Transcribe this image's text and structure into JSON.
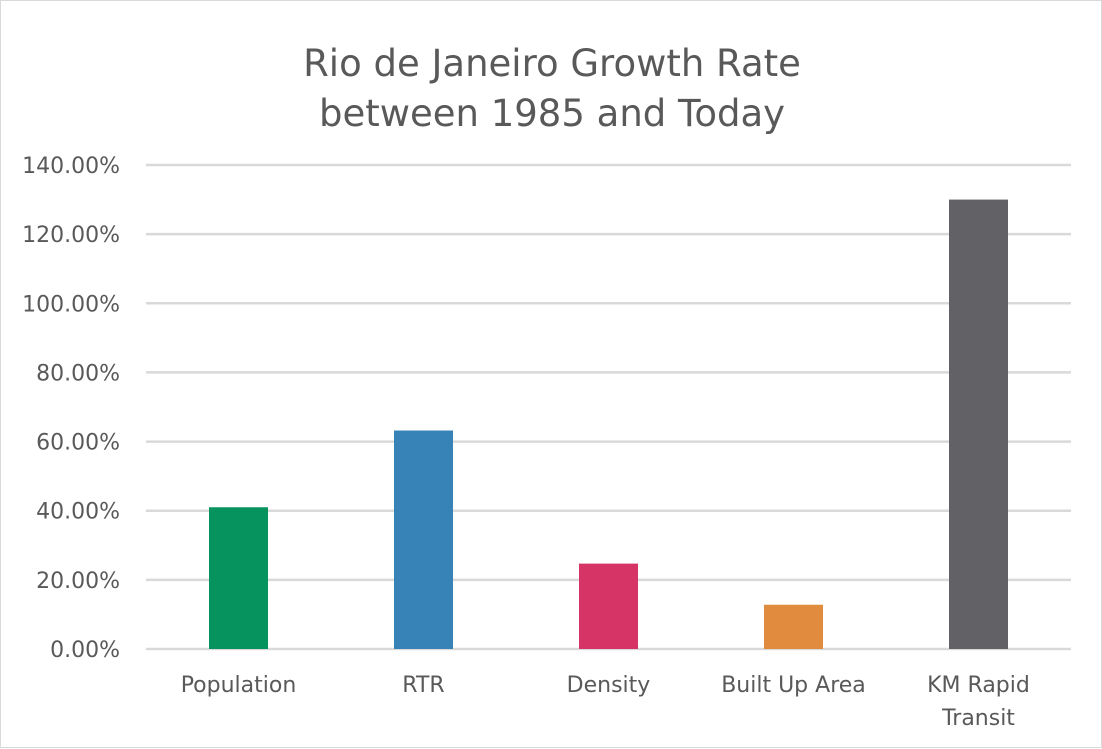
{
  "chart_data": {
    "type": "bar",
    "title_lines": [
      "Rio de Janeiro Growth Rate",
      "between 1985 and Today"
    ],
    "categories": [
      [
        "Population"
      ],
      [
        "RTR"
      ],
      [
        "Density"
      ],
      [
        "Built Up Area"
      ],
      [
        "KM Rapid",
        "Transit"
      ]
    ],
    "values": [
      41.0,
      63.2,
      24.7,
      12.8,
      130.0
    ],
    "colors": [
      "#06935e",
      "#3783b8",
      "#d63367",
      "#e08b3e",
      "#626266"
    ],
    "ylim": [
      0,
      140
    ],
    "yticks": [
      "0.00%",
      "20.00%",
      "40.00%",
      "60.00%",
      "80.00%",
      "100.00%",
      "120.00%",
      "140.00%"
    ],
    "grid": true,
    "legend": "none"
  }
}
